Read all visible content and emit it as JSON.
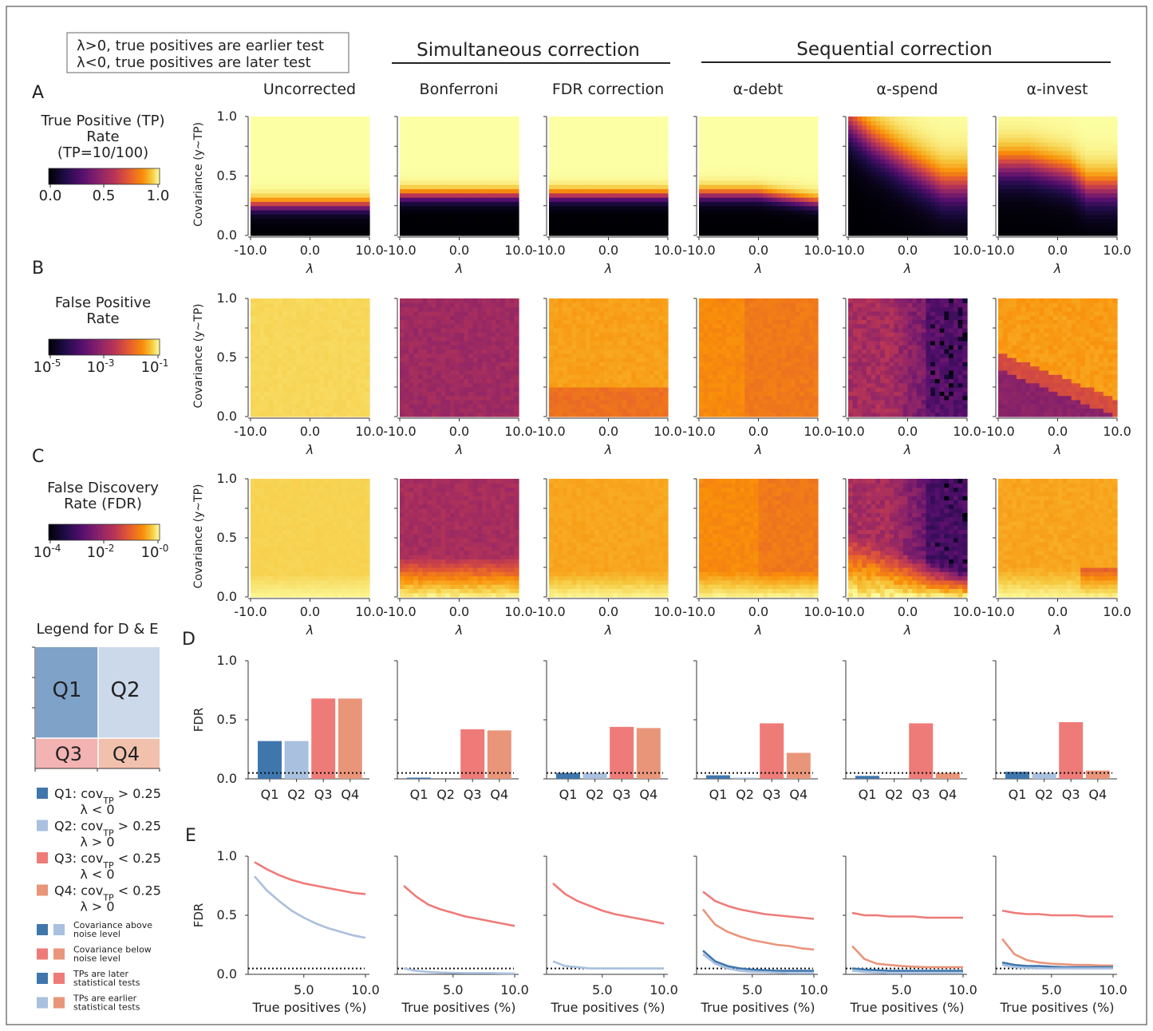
{
  "note_box": {
    "line1": "λ>0, true positives are earlier test",
    "line2": "λ<0, true positives are later test"
  },
  "groups": {
    "simultaneous": "Simultaneous correction",
    "sequential": "Sequential correction"
  },
  "columns": [
    "Uncorrected",
    "Bonferroni",
    "FDR correction",
    "α-debt",
    "α-spend",
    "α-invest"
  ],
  "panel_letters": [
    "A",
    "B",
    "C",
    "D",
    "E"
  ],
  "rows": {
    "A": {
      "title": [
        "True Positive (TP)",
        "Rate",
        "(TP=10/100)"
      ],
      "cbar_ticks": [
        "0.0",
        "0.5",
        "1.0"
      ]
    },
    "B": {
      "title": [
        "False Positive",
        "Rate"
      ],
      "cbar_ticks": [
        "10-5",
        "10-3",
        "10-1"
      ]
    },
    "C": {
      "title": [
        "False Discovery",
        "Rate (FDR)"
      ],
      "cbar_ticks": [
        "10-4",
        "10-2",
        "10-0"
      ]
    }
  },
  "heatmap_axes": {
    "ylabel": "Covariance (y~TP)",
    "xlabel": "λ",
    "xticks": [
      "-10.0",
      "0.0",
      "10.0"
    ],
    "yticks": [
      "0.0",
      "0.5",
      "1.0"
    ]
  },
  "legend_DE": {
    "title": "Legend for D & E",
    "quadrants": [
      "Q1",
      "Q2",
      "Q3",
      "Q4"
    ],
    "entries": [
      {
        "q": "Q1:",
        "text": "cov",
        "sub": "TP",
        "rel": " > 0.25",
        "lambda": "λ < 0",
        "color": "#3f77ad"
      },
      {
        "q": "Q2:",
        "text": "cov",
        "sub": "TP",
        "rel": " > 0.25",
        "lambda": "λ > 0",
        "color": "#a9c0de"
      },
      {
        "q": "Q3:",
        "text": "cov",
        "sub": "TP",
        "rel": " < 0.25",
        "lambda": "λ < 0",
        "color": "#ee7b78"
      },
      {
        "q": "Q4:",
        "text": "cov",
        "sub": "TP",
        "rel": " < 0.25",
        "lambda": "λ > 0",
        "color": "#e9957a"
      }
    ],
    "small": [
      [
        "Covariance above",
        "noise level"
      ],
      [
        "Covariance below",
        "noise level"
      ],
      [
        "TPs are later",
        "statistical tests"
      ],
      [
        "TPs are earlier",
        "statistical tests"
      ]
    ]
  },
  "chart_data": [
    {
      "type": "heatmap",
      "panel": "A",
      "quantity": "True Positive Rate (TP=10/100)",
      "x_range": [
        -10,
        10
      ],
      "y_range": [
        0,
        1
      ],
      "color_range": [
        0,
        1
      ],
      "threshold_covariance": {
        "Uncorrected": 0.28,
        "Bonferroni": 0.38,
        "FDR correction": 0.37,
        "α-debt": 0.37,
        "α-spend": "varies 0.95 at λ=-10 to 0.5 at λ=10",
        "α-invest": "varies 0.6 at λ=-10 to 0.45 at λ=10"
      }
    },
    {
      "type": "heatmap",
      "panel": "B",
      "quantity": "False Positive Rate (log scale)",
      "x_range": [
        -10,
        10
      ],
      "y_range": [
        0,
        1
      ],
      "color_range": [
        "1e-5",
        "1e-1"
      ]
    },
    {
      "type": "heatmap",
      "panel": "C",
      "quantity": "False Discovery Rate (log scale)",
      "x_range": [
        -10,
        10
      ],
      "y_range": [
        0,
        1
      ],
      "color_range": [
        "1e-4",
        "1e0"
      ]
    },
    {
      "type": "bar",
      "panel": "D",
      "ylabel": "FDR",
      "categories": [
        "Q1",
        "Q2",
        "Q3",
        "Q4"
      ],
      "ylim": [
        0,
        1
      ],
      "yticks": [
        "0.0",
        "0.5",
        "1.0"
      ],
      "reference_line": 0.05,
      "series": [
        {
          "values": [
            0.32,
            0.32,
            0.68,
            0.68
          ]
        },
        {
          "values": [
            0.01,
            0.0,
            0.42,
            0.41
          ]
        },
        {
          "values": [
            0.05,
            0.05,
            0.44,
            0.43
          ]
        },
        {
          "values": [
            0.03,
            0.01,
            0.47,
            0.22
          ]
        },
        {
          "values": [
            0.025,
            0.0,
            0.47,
            0.05
          ]
        },
        {
          "values": [
            0.06,
            0.05,
            0.48,
            0.07
          ]
        }
      ],
      "colors": [
        "#3f77ad",
        "#a9c0de",
        "#ee7b78",
        "#e9957a"
      ]
    },
    {
      "type": "line",
      "panel": "E",
      "ylabel": "FDR",
      "xlabel": "True positives (%)",
      "xticks": [
        "5.0",
        "10.0"
      ],
      "yticks": [
        "0.0",
        "0.5",
        "1.0"
      ],
      "x": [
        1,
        2,
        3,
        4,
        5,
        6,
        7,
        8,
        9,
        10
      ],
      "xlim": [
        0.5,
        10.5
      ],
      "ylim": [
        0,
        1
      ],
      "reference_line": 0.05,
      "series": [
        {
          "lines": [
            {
              "color": "#ee7b78",
              "values": [
                0.95,
                0.89,
                0.84,
                0.8,
                0.77,
                0.75,
                0.73,
                0.71,
                0.69,
                0.68
              ]
            },
            {
              "color": "#a9c0de",
              "values": [
                0.83,
                0.71,
                0.62,
                0.54,
                0.48,
                0.43,
                0.39,
                0.36,
                0.33,
                0.31
              ]
            }
          ]
        },
        {
          "lines": [
            {
              "color": "#ee7b78",
              "values": [
                0.75,
                0.66,
                0.59,
                0.55,
                0.52,
                0.49,
                0.47,
                0.45,
                0.43,
                0.41
              ]
            },
            {
              "color": "#a9c0de",
              "values": [
                0.05,
                0.03,
                0.02,
                0.015,
                0.012,
                0.01,
                0.01,
                0.01,
                0.008,
                0.007
              ]
            }
          ]
        },
        {
          "lines": [
            {
              "color": "#ee7b78",
              "values": [
                0.77,
                0.68,
                0.62,
                0.58,
                0.54,
                0.51,
                0.49,
                0.47,
                0.45,
                0.43
              ]
            },
            {
              "color": "#a9c0de",
              "values": [
                0.11,
                0.07,
                0.06,
                0.05,
                0.05,
                0.05,
                0.05,
                0.05,
                0.05,
                0.05
              ]
            }
          ]
        },
        {
          "lines": [
            {
              "color": "#ee7b78",
              "values": [
                0.7,
                0.62,
                0.58,
                0.55,
                0.53,
                0.51,
                0.5,
                0.49,
                0.48,
                0.47
              ]
            },
            {
              "color": "#e9957a",
              "values": [
                0.55,
                0.42,
                0.36,
                0.32,
                0.29,
                0.27,
                0.25,
                0.24,
                0.22,
                0.21
              ]
            },
            {
              "color": "#3f77ad",
              "values": [
                0.2,
                0.11,
                0.07,
                0.05,
                0.04,
                0.035,
                0.03,
                0.03,
                0.03,
                0.03
              ]
            },
            {
              "color": "#a9c0de",
              "values": [
                0.17,
                0.09,
                0.05,
                0.03,
                0.02,
                0.02,
                0.015,
                0.01,
                0.01,
                0.01
              ]
            }
          ]
        },
        {
          "lines": [
            {
              "color": "#ee7b78",
              "values": [
                0.52,
                0.5,
                0.5,
                0.49,
                0.49,
                0.49,
                0.48,
                0.48,
                0.48,
                0.48
              ]
            },
            {
              "color": "#e9957a",
              "values": [
                0.24,
                0.13,
                0.09,
                0.08,
                0.07,
                0.065,
                0.06,
                0.06,
                0.06,
                0.06
              ]
            },
            {
              "color": "#3f77ad",
              "values": [
                0.05,
                0.04,
                0.035,
                0.03,
                0.03,
                0.03,
                0.03,
                0.03,
                0.03,
                0.03
              ]
            },
            {
              "color": "#a9c0de",
              "values": [
                0.03,
                0.02,
                0.015,
                0.01,
                0.01,
                0.01,
                0.01,
                0.01,
                0.01,
                0.01
              ]
            }
          ]
        },
        {
          "lines": [
            {
              "color": "#ee7b78",
              "values": [
                0.54,
                0.52,
                0.51,
                0.51,
                0.5,
                0.5,
                0.5,
                0.49,
                0.49,
                0.49
              ]
            },
            {
              "color": "#e9957a",
              "values": [
                0.3,
                0.17,
                0.12,
                0.1,
                0.09,
                0.085,
                0.08,
                0.08,
                0.075,
                0.075
              ]
            },
            {
              "color": "#3f77ad",
              "values": [
                0.1,
                0.08,
                0.07,
                0.07,
                0.065,
                0.06,
                0.06,
                0.06,
                0.06,
                0.06
              ]
            },
            {
              "color": "#a9c0de",
              "values": [
                0.08,
                0.06,
                0.055,
                0.05,
                0.05,
                0.05,
                0.05,
                0.05,
                0.05,
                0.05
              ]
            }
          ]
        }
      ]
    }
  ]
}
